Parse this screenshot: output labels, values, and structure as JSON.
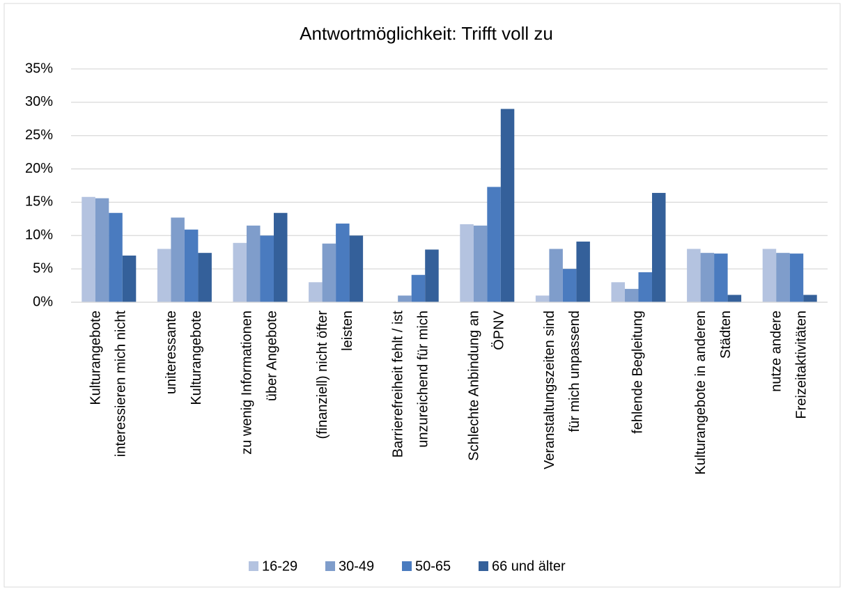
{
  "chart_data": {
    "type": "bar",
    "title": "Antwortmöglichkeit: Trifft voll zu",
    "categories": [
      "Kulturangebote\ninteressieren mich nicht",
      "uniteressante\nKulturangebote",
      "zu wenig Informationen\nüber Angebote",
      "(finanziell) nicht öfter\nleisten",
      "Barrierefreiheit fehlt / ist\nunzureichend für mich",
      "Schlechte Anbindung an\nÖPNV",
      "Veranstaltungszeiten sind\nfür mich unpassend",
      "fehlende Begleitung",
      "Kulturangebote in anderen\nStädten",
      "nutze andere\nFreizeitaktivitäten"
    ],
    "series": [
      {
        "name": "16-29",
        "color": "#b4c3e0",
        "values": [
          15.8,
          8,
          8.9,
          3,
          0,
          11.7,
          1,
          3,
          8,
          8
        ]
      },
      {
        "name": "30-49",
        "color": "#7f9dcb",
        "values": [
          15.6,
          12.7,
          11.5,
          8.8,
          1,
          11.5,
          8,
          2,
          7.4,
          7.4
        ]
      },
      {
        "name": "50-65",
        "color": "#4a7bbf",
        "values": [
          13.4,
          10.9,
          10,
          11.8,
          4.1,
          17.3,
          5,
          4.5,
          7.3,
          7.3
        ]
      },
      {
        "name": "66 und älter",
        "color": "#34609a",
        "values": [
          7,
          7.4,
          13.4,
          10,
          7.9,
          29,
          9.1,
          16.4,
          1.1,
          1.1
        ]
      }
    ],
    "ylim": [
      0,
      35
    ],
    "yticks": [
      {
        "value": 0,
        "label": "0%"
      },
      {
        "value": 5,
        "label": "5%"
      },
      {
        "value": 10,
        "label": "10%"
      },
      {
        "value": 15,
        "label": "15%"
      },
      {
        "value": 20,
        "label": "20%"
      },
      {
        "value": 25,
        "label": "25%"
      },
      {
        "value": 30,
        "label": "30%"
      },
      {
        "value": 35,
        "label": "35%"
      }
    ],
    "grid": true,
    "legend": "bottom"
  }
}
